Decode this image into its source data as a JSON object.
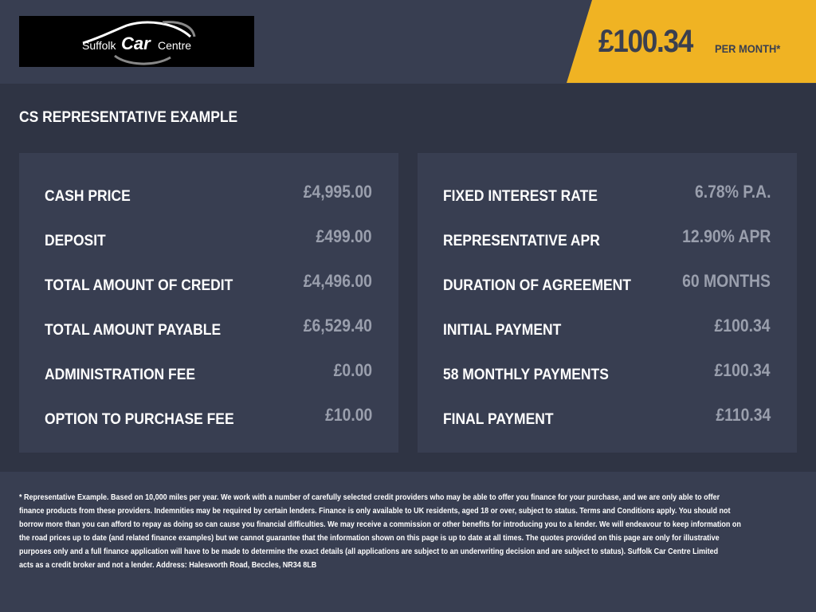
{
  "logo": {
    "text_left": "Suffolk",
    "text_mid": "Car",
    "text_right": "Centre"
  },
  "price_banner": {
    "amount": "£100.34",
    "suffix": "PER MONTH*",
    "color": "#f0b323"
  },
  "section_title": "CS REPRESENTATIVE EXAMPLE",
  "left_panel": [
    {
      "label": "CASH PRICE",
      "value": "£4,995.00"
    },
    {
      "label": "DEPOSIT",
      "value": "£499.00"
    },
    {
      "label": "TOTAL AMOUNT OF CREDIT",
      "value": "£4,496.00"
    },
    {
      "label": "TOTAL AMOUNT PAYABLE",
      "value": "£6,529.40"
    },
    {
      "label": "ADMINISTRATION FEE",
      "value": "£0.00"
    },
    {
      "label": "OPTION TO PURCHASE FEE",
      "value": "£10.00"
    }
  ],
  "right_panel": [
    {
      "label": "FIXED INTEREST RATE",
      "value": "6.78% P.A."
    },
    {
      "label": "REPRESENTATIVE APR",
      "value": "12.90% APR"
    },
    {
      "label": "DURATION OF AGREEMENT",
      "value": "60 MONTHS"
    },
    {
      "label": "INITIAL PAYMENT",
      "value": "£100.34"
    },
    {
      "label": "58 MONTHLY PAYMENTS",
      "value": "£100.34"
    },
    {
      "label": "FINAL PAYMENT",
      "value": "£110.34"
    }
  ],
  "disclaimer_lines": [
    "* Representative Example. Based on 10,000 miles per year. We work with a number of carefully selected credit providers who may be able to offer you finance for your purchase, and we are only able to offer",
    "finance products from these providers. Indemnities may be required by certain lenders. Finance is only available to UK residents, aged 18 or over, subject to status. Terms and Conditions apply. You should not",
    "borrow more than you can afford to repay as doing so can cause you financial difficulties. We may receive a commission or other benefits for introducing you to a lender. We will endeavour to keep information on",
    "the road prices up to date (and related finance examples) but we cannot guarantee that the information shown on this page is up to date at all times. The quotes provided on this page are only for illustrative",
    "purposes only and a full finance application will have to be made to determine the exact details (all applications are subject to an underwriting decision and are subject to status). Suffolk Car Centre Limited",
    "acts as a credit broker and not a lender. Address: Halesworth Road, Beccles, NR34 8LB"
  ]
}
